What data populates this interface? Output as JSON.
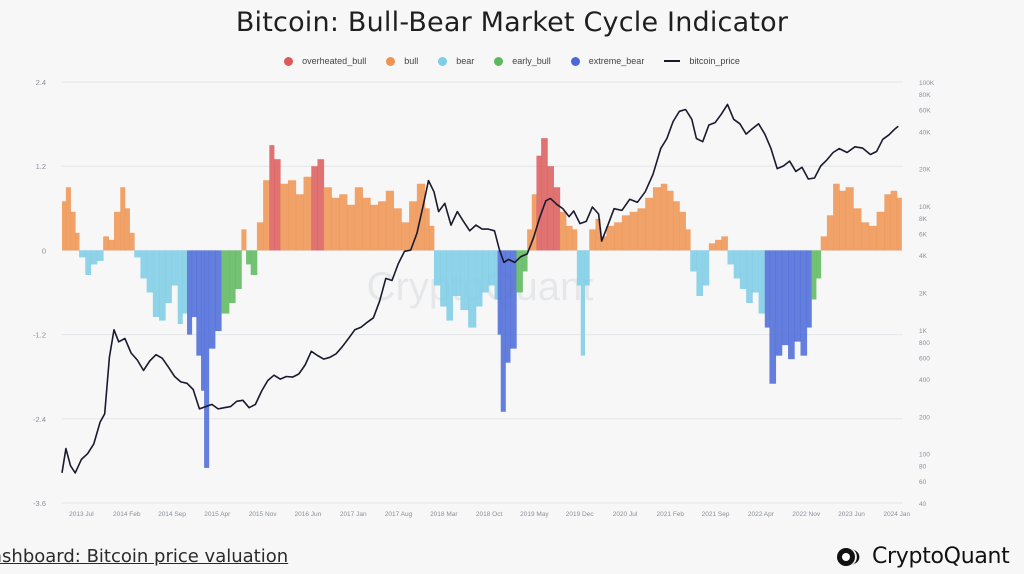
{
  "title": "Bitcoin: Bull-Bear Market Cycle Indicator",
  "footer_text": "ashboard: Bitcoin price valuation",
  "brand": "CryptoQuant",
  "watermark": "CryptoQuant",
  "legend": [
    {
      "name": "overheated_bull",
      "color": "#dc5a5a",
      "kind": "dot"
    },
    {
      "name": "bull",
      "color": "#ef9350",
      "kind": "dot"
    },
    {
      "name": "bear",
      "color": "#7dcde6",
      "kind": "dot"
    },
    {
      "name": "early_bull",
      "color": "#5cb85c",
      "kind": "dot"
    },
    {
      "name": "extreme_bear",
      "color": "#4a69d8",
      "kind": "dot"
    },
    {
      "name": "bitcoin_price",
      "color": "#1a1a2e",
      "kind": "line"
    }
  ],
  "chart_data": {
    "type": "area",
    "y_left": {
      "range": [
        -3.6,
        2.4
      ],
      "tick_labels": [
        "2.4",
        "1.2",
        "0",
        "-1.2",
        "-2.4",
        "-3.6"
      ],
      "tick_values": [
        2.4,
        1.2,
        0,
        -1.2,
        -2.4,
        -3.6
      ]
    },
    "y_right": {
      "scale": "log",
      "range": [
        40,
        100000
      ],
      "tick_labels": [
        "100K",
        "80K",
        "60K",
        "40K",
        "20K",
        "10K",
        "8K",
        "6K",
        "4K",
        "2K",
        "1K",
        "800",
        "600",
        "400",
        "200",
        "100",
        "80",
        "60",
        "40"
      ],
      "tick_values": [
        100000,
        80000,
        60000,
        40000,
        20000,
        10000,
        8000,
        6000,
        4000,
        2000,
        1000,
        800,
        600,
        400,
        200,
        100,
        80,
        60,
        40
      ]
    },
    "x_ticks": [
      "2013 Jul",
      "2014 Feb",
      "2014 Sep",
      "2015 Apr",
      "2015 Nov",
      "2016 Jun",
      "2017 Jan",
      "2017 Aug",
      "2018 Mar",
      "2018 Oct",
      "2019 May",
      "2019 Dec",
      "2020 Jul",
      "2021 Feb",
      "2021 Sep",
      "2022 Apr",
      "2022 Nov",
      "2023 Jun",
      "2024 Jan"
    ],
    "x_range": [
      2013.25,
      2024.08
    ],
    "indicator": [
      [
        2013.25,
        0.7,
        "bull"
      ],
      [
        2013.3,
        0.9,
        "bull"
      ],
      [
        2013.36,
        0.55,
        "bull"
      ],
      [
        2013.42,
        0.25,
        "bull"
      ],
      [
        2013.47,
        -0.1,
        "bear"
      ],
      [
        2013.55,
        -0.35,
        "bear"
      ],
      [
        2013.62,
        -0.2,
        "bear"
      ],
      [
        2013.7,
        -0.15,
        "bear"
      ],
      [
        2013.78,
        0.2,
        "bull"
      ],
      [
        2013.85,
        0.15,
        "bull"
      ],
      [
        2013.92,
        0.55,
        "bull"
      ],
      [
        2014.0,
        0.9,
        "bull"
      ],
      [
        2014.06,
        0.6,
        "bull"
      ],
      [
        2014.12,
        0.25,
        "bull"
      ],
      [
        2014.18,
        -0.1,
        "bear"
      ],
      [
        2014.26,
        -0.4,
        "bear"
      ],
      [
        2014.34,
        -0.6,
        "bear"
      ],
      [
        2014.42,
        -0.95,
        "bear"
      ],
      [
        2014.5,
        -1.0,
        "bear"
      ],
      [
        2014.58,
        -0.75,
        "bear"
      ],
      [
        2014.66,
        -0.5,
        "bear"
      ],
      [
        2014.74,
        -1.05,
        "bear"
      ],
      [
        2014.8,
        -0.9,
        "bear"
      ],
      [
        2014.86,
        -1.2,
        "extreme_bear"
      ],
      [
        2014.92,
        -0.95,
        "extreme_bear"
      ],
      [
        2014.98,
        -1.5,
        "extreme_bear"
      ],
      [
        2015.04,
        -2.0,
        "extreme_bear"
      ],
      [
        2015.08,
        -3.1,
        "extreme_bear"
      ],
      [
        2015.14,
        -1.4,
        "extreme_bear"
      ],
      [
        2015.22,
        -1.15,
        "extreme_bear"
      ],
      [
        2015.3,
        -0.9,
        "early_bull"
      ],
      [
        2015.4,
        -0.75,
        "early_bull"
      ],
      [
        2015.48,
        -0.55,
        "early_bull"
      ],
      [
        2015.56,
        0.3,
        "bull"
      ],
      [
        2015.62,
        -0.2,
        "early_bull"
      ],
      [
        2015.68,
        -0.35,
        "early_bull"
      ],
      [
        2015.76,
        0.4,
        "bull"
      ],
      [
        2015.84,
        1.0,
        "bull"
      ],
      [
        2015.92,
        1.5,
        "overheated_bull"
      ],
      [
        2015.98,
        1.3,
        "overheated_bull"
      ],
      [
        2016.06,
        0.95,
        "bull"
      ],
      [
        2016.16,
        1.0,
        "bull"
      ],
      [
        2016.26,
        0.8,
        "bull"
      ],
      [
        2016.36,
        1.05,
        "bull"
      ],
      [
        2016.46,
        1.2,
        "overheated_bull"
      ],
      [
        2016.54,
        1.3,
        "overheated_bull"
      ],
      [
        2016.62,
        0.9,
        "bull"
      ],
      [
        2016.72,
        0.75,
        "bull"
      ],
      [
        2016.82,
        0.8,
        "bull"
      ],
      [
        2016.92,
        0.65,
        "bull"
      ],
      [
        2017.02,
        0.9,
        "bull"
      ],
      [
        2017.12,
        0.75,
        "bull"
      ],
      [
        2017.22,
        0.65,
        "bull"
      ],
      [
        2017.32,
        0.7,
        "bull"
      ],
      [
        2017.42,
        0.85,
        "bull"
      ],
      [
        2017.52,
        0.6,
        "bull"
      ],
      [
        2017.62,
        0.4,
        "bull"
      ],
      [
        2017.72,
        0.7,
        "bull"
      ],
      [
        2017.82,
        0.95,
        "bull"
      ],
      [
        2017.92,
        0.6,
        "bull"
      ],
      [
        2017.98,
        0.35,
        "bull"
      ],
      [
        2018.04,
        -0.5,
        "bear"
      ],
      [
        2018.12,
        -0.8,
        "bear"
      ],
      [
        2018.2,
        -1.0,
        "bear"
      ],
      [
        2018.28,
        -0.65,
        "bear"
      ],
      [
        2018.38,
        -0.85,
        "bear"
      ],
      [
        2018.48,
        -1.1,
        "bear"
      ],
      [
        2018.58,
        -0.8,
        "bear"
      ],
      [
        2018.66,
        -0.6,
        "bear"
      ],
      [
        2018.74,
        -0.5,
        "bear"
      ],
      [
        2018.82,
        -0.7,
        "bear"
      ],
      [
        2018.86,
        -1.2,
        "extreme_bear"
      ],
      [
        2018.9,
        -2.3,
        "extreme_bear"
      ],
      [
        2018.96,
        -1.6,
        "extreme_bear"
      ],
      [
        2019.02,
        -1.4,
        "extreme_bear"
      ],
      [
        2019.1,
        -0.6,
        "early_bull"
      ],
      [
        2019.18,
        -0.3,
        "early_bull"
      ],
      [
        2019.24,
        0.3,
        "bull"
      ],
      [
        2019.3,
        0.8,
        "bull"
      ],
      [
        2019.36,
        1.35,
        "overheated_bull"
      ],
      [
        2019.42,
        1.6,
        "overheated_bull"
      ],
      [
        2019.5,
        1.2,
        "overheated_bull"
      ],
      [
        2019.58,
        0.9,
        "overheated_bull"
      ],
      [
        2019.66,
        0.55,
        "bull"
      ],
      [
        2019.74,
        0.35,
        "bull"
      ],
      [
        2019.82,
        0.3,
        "bull"
      ],
      [
        2019.88,
        -0.5,
        "bear"
      ],
      [
        2019.93,
        -1.5,
        "bear"
      ],
      [
        2019.98,
        -0.5,
        "bear"
      ],
      [
        2020.04,
        0.3,
        "bull"
      ],
      [
        2020.12,
        0.45,
        "bull"
      ],
      [
        2020.18,
        0.2,
        "bull"
      ],
      [
        2020.26,
        0.35,
        "bull"
      ],
      [
        2020.36,
        0.4,
        "bull"
      ],
      [
        2020.46,
        0.5,
        "bull"
      ],
      [
        2020.56,
        0.55,
        "bull"
      ],
      [
        2020.66,
        0.6,
        "bull"
      ],
      [
        2020.76,
        0.75,
        "bull"
      ],
      [
        2020.86,
        0.9,
        "bull"
      ],
      [
        2020.96,
        0.95,
        "bull"
      ],
      [
        2021.04,
        0.85,
        "bull"
      ],
      [
        2021.12,
        0.7,
        "bull"
      ],
      [
        2021.2,
        0.55,
        "bull"
      ],
      [
        2021.28,
        0.3,
        "bull"
      ],
      [
        2021.34,
        -0.3,
        "bear"
      ],
      [
        2021.42,
        -0.65,
        "bear"
      ],
      [
        2021.5,
        -0.5,
        "bear"
      ],
      [
        2021.58,
        0.1,
        "bull"
      ],
      [
        2021.66,
        0.15,
        "bull"
      ],
      [
        2021.74,
        0.2,
        "bull"
      ],
      [
        2021.82,
        -0.2,
        "bear"
      ],
      [
        2021.9,
        -0.4,
        "bear"
      ],
      [
        2021.98,
        -0.55,
        "bear"
      ],
      [
        2022.06,
        -0.75,
        "bear"
      ],
      [
        2022.14,
        -0.6,
        "bear"
      ],
      [
        2022.22,
        -0.9,
        "bear"
      ],
      [
        2022.3,
        -1.1,
        "extreme_bear"
      ],
      [
        2022.36,
        -1.9,
        "extreme_bear"
      ],
      [
        2022.44,
        -1.5,
        "extreme_bear"
      ],
      [
        2022.52,
        -1.35,
        "extreme_bear"
      ],
      [
        2022.6,
        -1.55,
        "extreme_bear"
      ],
      [
        2022.68,
        -1.3,
        "extreme_bear"
      ],
      [
        2022.76,
        -1.5,
        "extreme_bear"
      ],
      [
        2022.84,
        -1.1,
        "extreme_bear"
      ],
      [
        2022.9,
        -0.7,
        "early_bull"
      ],
      [
        2022.96,
        -0.4,
        "early_bull"
      ],
      [
        2023.02,
        0.2,
        "bull"
      ],
      [
        2023.1,
        0.5,
        "bull"
      ],
      [
        2023.18,
        0.95,
        "bull"
      ],
      [
        2023.26,
        0.85,
        "bull"
      ],
      [
        2023.34,
        0.9,
        "bull"
      ],
      [
        2023.44,
        0.6,
        "bull"
      ],
      [
        2023.54,
        0.4,
        "bull"
      ],
      [
        2023.64,
        0.35,
        "bull"
      ],
      [
        2023.74,
        0.55,
        "bull"
      ],
      [
        2023.84,
        0.8,
        "bull"
      ],
      [
        2023.92,
        0.85,
        "bull"
      ],
      [
        2024.0,
        0.75,
        "bull"
      ]
    ],
    "bitcoin_price": [
      [
        2013.25,
        70
      ],
      [
        2013.3,
        110
      ],
      [
        2013.36,
        80
      ],
      [
        2013.42,
        70
      ],
      [
        2013.5,
        90
      ],
      [
        2013.58,
        100
      ],
      [
        2013.66,
        120
      ],
      [
        2013.74,
        180
      ],
      [
        2013.8,
        210
      ],
      [
        2013.86,
        600
      ],
      [
        2013.92,
        1000
      ],
      [
        2013.98,
        800
      ],
      [
        2014.06,
        850
      ],
      [
        2014.14,
        650
      ],
      [
        2014.22,
        570
      ],
      [
        2014.3,
        470
      ],
      [
        2014.38,
        560
      ],
      [
        2014.46,
        630
      ],
      [
        2014.54,
        590
      ],
      [
        2014.62,
        500
      ],
      [
        2014.7,
        420
      ],
      [
        2014.78,
        380
      ],
      [
        2014.86,
        370
      ],
      [
        2014.94,
        330
      ],
      [
        2015.02,
        230
      ],
      [
        2015.1,
        240
      ],
      [
        2015.18,
        250
      ],
      [
        2015.26,
        230
      ],
      [
        2015.34,
        235
      ],
      [
        2015.42,
        240
      ],
      [
        2015.5,
        265
      ],
      [
        2015.58,
        270
      ],
      [
        2015.66,
        235
      ],
      [
        2015.74,
        250
      ],
      [
        2015.82,
        320
      ],
      [
        2015.9,
        390
      ],
      [
        2015.98,
        430
      ],
      [
        2016.06,
        400
      ],
      [
        2016.14,
        420
      ],
      [
        2016.22,
        415
      ],
      [
        2016.3,
        440
      ],
      [
        2016.38,
        520
      ],
      [
        2016.46,
        670
      ],
      [
        2016.54,
        620
      ],
      [
        2016.62,
        580
      ],
      [
        2016.7,
        600
      ],
      [
        2016.78,
        640
      ],
      [
        2016.86,
        730
      ],
      [
        2016.94,
        850
      ],
      [
        2017.02,
        1000
      ],
      [
        2017.1,
        1050
      ],
      [
        2017.18,
        1150
      ],
      [
        2017.26,
        1250
      ],
      [
        2017.34,
        1700
      ],
      [
        2017.42,
        2600
      ],
      [
        2017.5,
        2500
      ],
      [
        2017.58,
        3400
      ],
      [
        2017.66,
        4300
      ],
      [
        2017.74,
        4400
      ],
      [
        2017.82,
        6000
      ],
      [
        2017.9,
        10000
      ],
      [
        2017.97,
        16000
      ],
      [
        2018.04,
        13000
      ],
      [
        2018.1,
        9000
      ],
      [
        2018.18,
        10500
      ],
      [
        2018.26,
        7000
      ],
      [
        2018.34,
        9000
      ],
      [
        2018.42,
        7500
      ],
      [
        2018.5,
        6300
      ],
      [
        2018.58,
        7000
      ],
      [
        2018.66,
        6500
      ],
      [
        2018.74,
        6500
      ],
      [
        2018.82,
        6300
      ],
      [
        2018.88,
        4500
      ],
      [
        2018.94,
        3500
      ],
      [
        2019.0,
        3700
      ],
      [
        2019.08,
        3500
      ],
      [
        2019.16,
        3900
      ],
      [
        2019.24,
        4100
      ],
      [
        2019.32,
        5500
      ],
      [
        2019.4,
        8000
      ],
      [
        2019.48,
        11000
      ],
      [
        2019.54,
        11500
      ],
      [
        2019.62,
        10300
      ],
      [
        2019.7,
        9500
      ],
      [
        2019.78,
        8200
      ],
      [
        2019.84,
        9100
      ],
      [
        2019.92,
        7200
      ],
      [
        2020.0,
        7500
      ],
      [
        2020.08,
        9800
      ],
      [
        2020.16,
        8600
      ],
      [
        2020.2,
        5200
      ],
      [
        2020.28,
        7000
      ],
      [
        2020.36,
        9500
      ],
      [
        2020.46,
        9200
      ],
      [
        2020.56,
        11300
      ],
      [
        2020.66,
        10700
      ],
      [
        2020.76,
        13000
      ],
      [
        2020.86,
        18000
      ],
      [
        2020.96,
        29000
      ],
      [
        2021.04,
        35000
      ],
      [
        2021.12,
        48000
      ],
      [
        2021.2,
        58000
      ],
      [
        2021.28,
        60000
      ],
      [
        2021.36,
        50000
      ],
      [
        2021.42,
        35000
      ],
      [
        2021.5,
        33000
      ],
      [
        2021.58,
        45000
      ],
      [
        2021.66,
        47000
      ],
      [
        2021.74,
        55000
      ],
      [
        2021.82,
        66000
      ],
      [
        2021.9,
        50000
      ],
      [
        2021.98,
        46000
      ],
      [
        2022.06,
        38000
      ],
      [
        2022.14,
        42000
      ],
      [
        2022.22,
        46000
      ],
      [
        2022.3,
        38000
      ],
      [
        2022.38,
        29000
      ],
      [
        2022.46,
        20000
      ],
      [
        2022.54,
        21000
      ],
      [
        2022.62,
        23000
      ],
      [
        2022.7,
        19000
      ],
      [
        2022.78,
        20500
      ],
      [
        2022.86,
        16500
      ],
      [
        2022.94,
        16800
      ],
      [
        2023.02,
        21000
      ],
      [
        2023.1,
        23500
      ],
      [
        2023.18,
        27000
      ],
      [
        2023.26,
        29000
      ],
      [
        2023.36,
        27000
      ],
      [
        2023.46,
        30000
      ],
      [
        2023.56,
        29300
      ],
      [
        2023.66,
        26000
      ],
      [
        2023.74,
        27500
      ],
      [
        2023.82,
        34500
      ],
      [
        2023.9,
        37500
      ],
      [
        2023.98,
        42000
      ],
      [
        2024.02,
        44000
      ]
    ]
  }
}
